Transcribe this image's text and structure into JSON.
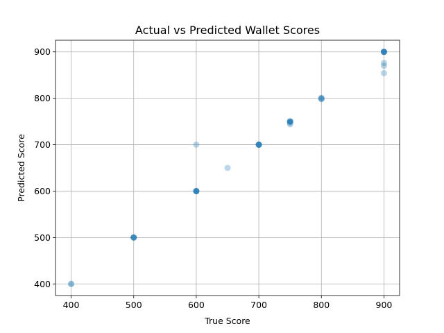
{
  "chart_data": {
    "type": "scatter",
    "title": "Actual vs Predicted Wallet Scores",
    "xlabel": "True Score",
    "ylabel": "Predicted Score",
    "xlim": [
      375,
      925
    ],
    "ylim": [
      375,
      925
    ],
    "xticks": [
      400,
      500,
      600,
      700,
      800,
      900
    ],
    "yticks": [
      400,
      500,
      600,
      700,
      800,
      900
    ],
    "grid": true,
    "point_color": "#1f77b4",
    "point_alpha": 0.3,
    "points": [
      [
        400,
        400
      ],
      [
        400,
        400
      ],
      [
        500,
        500
      ],
      [
        500,
        500
      ],
      [
        500,
        500
      ],
      [
        500,
        500
      ],
      [
        500,
        500
      ],
      [
        600,
        600
      ],
      [
        600,
        600
      ],
      [
        600,
        600
      ],
      [
        600,
        600
      ],
      [
        600,
        600
      ],
      [
        600,
        600
      ],
      [
        600,
        700
      ],
      [
        650,
        650
      ],
      [
        700,
        700
      ],
      [
        700,
        700
      ],
      [
        700,
        700
      ],
      [
        700,
        700
      ],
      [
        700,
        700
      ],
      [
        700,
        700
      ],
      [
        750,
        744
      ],
      [
        750,
        747
      ],
      [
        750,
        750
      ],
      [
        750,
        750
      ],
      [
        750,
        750
      ],
      [
        750,
        750
      ],
      [
        750,
        750
      ],
      [
        800,
        798
      ],
      [
        800,
        799
      ],
      [
        800,
        800
      ],
      [
        800,
        801
      ],
      [
        900,
        854
      ],
      [
        900,
        870
      ],
      [
        900,
        876
      ],
      [
        900,
        900
      ],
      [
        900,
        900
      ],
      [
        900,
        900
      ],
      [
        900,
        900
      ],
      [
        900,
        900
      ],
      [
        900,
        900
      ]
    ]
  }
}
